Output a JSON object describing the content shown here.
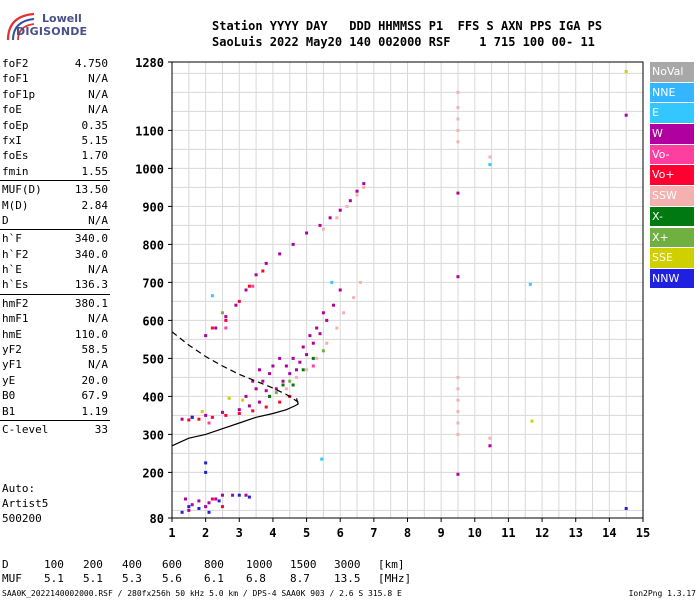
{
  "logo": {
    "line1": "Lowell",
    "line2": "DIGISONDE"
  },
  "header": {
    "line1": "Station YYYY DAY   DDD HHMMSS P1  FFS S AXN PPS IGA PS",
    "line2": "SaoLuis 2022 May20 140 002000 RSF    1 715 100 00- 11"
  },
  "params": [
    [
      [
        "foF2",
        "4.750"
      ],
      [
        "foF1",
        "N/A"
      ],
      [
        "foF1p",
        "N/A"
      ],
      [
        "foE",
        "N/A"
      ],
      [
        "foEp",
        "0.35"
      ],
      [
        "fxI",
        "5.15"
      ],
      [
        "foEs",
        "1.70"
      ],
      [
        "fmin",
        "1.55"
      ]
    ],
    [
      [
        "MUF(D)",
        "13.50"
      ],
      [
        "M(D)",
        "2.84"
      ],
      [
        "D",
        "N/A"
      ]
    ],
    [
      [
        "h`F",
        "340.0"
      ],
      [
        "h`F2",
        "340.0"
      ],
      [
        "h`E",
        "N/A"
      ],
      [
        "h`Es",
        "136.3"
      ]
    ],
    [
      [
        "hmF2",
        "380.1"
      ],
      [
        "hmF1",
        "N/A"
      ],
      [
        "hmE",
        "110.0"
      ],
      [
        "yF2",
        "58.5"
      ],
      [
        "yF1",
        "N/A"
      ],
      [
        "yE",
        "20.0"
      ],
      [
        "B0",
        "67.9"
      ],
      [
        "B1",
        "1.19"
      ]
    ],
    [
      [
        "C-level",
        "33"
      ]
    ]
  ],
  "auto": {
    "line1": "Auto:",
    "line2": "Artist5",
    "line3": "500200"
  },
  "legend": [
    {
      "label": "NoVal",
      "color": "#a8a8a8"
    },
    {
      "label": "NNE",
      "color": "#33b5ff"
    },
    {
      "label": "E",
      "color": "#33c6ff"
    },
    {
      "label": "W",
      "color": "#b000a0"
    },
    {
      "label": "Vo-",
      "color": "#ff3fa0"
    },
    {
      "label": "Vo+",
      "color": "#ff0030"
    },
    {
      "label": "SSW",
      "color": "#f5b0b0"
    },
    {
      "label": "X-",
      "color": "#007a10"
    },
    {
      "label": "X+",
      "color": "#70b040"
    },
    {
      "label": "SSE",
      "color": "#d0d000"
    },
    {
      "label": "NNW",
      "color": "#2020e0"
    }
  ],
  "footer": {
    "d_label": "D",
    "d_values": [
      "100",
      "200",
      "400",
      "600",
      "800",
      "1000",
      "1500",
      "3000"
    ],
    "d_unit": "[km]",
    "muf_label": "MUF",
    "muf_values": [
      "5.1",
      "5.1",
      "5.3",
      "5.6",
      "6.1",
      "6.8",
      "8.7",
      "13.5"
    ],
    "muf_unit": "[MHz]"
  },
  "bottomline": "SAA0K_2022140002000.RSF / 280fx256h 50 kHz 5.0 km / DPS-4 SAA0K 903 / 2.6 S 315.8 E",
  "version": "Ion2Png 1.3.17",
  "chart_data": {
    "type": "scatter",
    "xlim": [
      1,
      15
    ],
    "ylim": [
      80,
      1280
    ],
    "xticks": [
      1,
      2,
      3,
      4,
      5,
      6,
      7,
      8,
      9,
      10,
      11,
      12,
      13,
      14,
      15
    ],
    "yticks": [
      80,
      200,
      300,
      400,
      500,
      600,
      700,
      800,
      900,
      1000,
      1100,
      1280
    ],
    "grid": true,
    "series": [
      {
        "name": "W",
        "color": "#b000a0",
        "points": [
          [
            1.3,
            340
          ],
          [
            1.6,
            345
          ],
          [
            2.0,
            350
          ],
          [
            2.5,
            358
          ],
          [
            3.0,
            365
          ],
          [
            3.3,
            375
          ],
          [
            3.6,
            385
          ],
          [
            3.9,
            400
          ],
          [
            4.1,
            420
          ],
          [
            4.3,
            440
          ],
          [
            4.5,
            460
          ],
          [
            4.8,
            490
          ],
          [
            5.0,
            510
          ],
          [
            5.2,
            540
          ],
          [
            5.4,
            565
          ],
          [
            5.6,
            600
          ],
          [
            5.8,
            640
          ],
          [
            6.0,
            680
          ],
          [
            3.5,
            420
          ],
          [
            3.7,
            440
          ],
          [
            3.9,
            460
          ],
          [
            4.0,
            480
          ],
          [
            4.2,
            500
          ],
          [
            3.4,
            440
          ],
          [
            3.6,
            470
          ],
          [
            4.4,
            480
          ],
          [
            4.6,
            500
          ],
          [
            4.9,
            530
          ],
          [
            5.1,
            560
          ],
          [
            5.3,
            580
          ],
          [
            5.5,
            620
          ],
          [
            3.2,
            400
          ],
          [
            3.8,
            415
          ],
          [
            4.7,
            470
          ],
          [
            2.0,
            560
          ],
          [
            2.3,
            580
          ],
          [
            2.6,
            610
          ],
          [
            2.9,
            640
          ],
          [
            3.2,
            680
          ],
          [
            3.5,
            720
          ],
          [
            3.8,
            750
          ],
          [
            4.2,
            775
          ],
          [
            4.6,
            800
          ],
          [
            5.0,
            830
          ],
          [
            5.4,
            850
          ],
          [
            5.7,
            870
          ],
          [
            6.0,
            890
          ],
          [
            6.3,
            915
          ],
          [
            6.5,
            940
          ],
          [
            6.7,
            960
          ],
          [
            1.4,
            130
          ],
          [
            1.6,
            115
          ],
          [
            1.8,
            125
          ],
          [
            2.1,
            120
          ],
          [
            2.3,
            130
          ],
          [
            2.5,
            140
          ],
          [
            2.8,
            140
          ],
          [
            3.2,
            140
          ],
          [
            1.5,
            100
          ],
          [
            2.0,
            110
          ],
          [
            9.5,
            935
          ],
          [
            9.5,
            715
          ],
          [
            9.5,
            195
          ],
          [
            14.5,
            1140
          ],
          [
            10.45,
            270
          ]
        ]
      },
      {
        "name": "Vo+",
        "color": "#ff0030",
        "points": [
          [
            1.5,
            338
          ],
          [
            1.8,
            340
          ],
          [
            2.2,
            345
          ],
          [
            2.6,
            350
          ],
          [
            3.0,
            355
          ],
          [
            3.4,
            362
          ],
          [
            3.8,
            372
          ],
          [
            4.2,
            385
          ],
          [
            4.5,
            400
          ],
          [
            2.2,
            580
          ],
          [
            2.6,
            600
          ],
          [
            3.0,
            650
          ],
          [
            3.3,
            690
          ],
          [
            3.7,
            730
          ],
          [
            2.5,
            110
          ],
          [
            2.2,
            130
          ]
        ]
      },
      {
        "name": "SSW",
        "color": "#f5b0b0",
        "points": [
          [
            4.4,
            420
          ],
          [
            4.7,
            450
          ],
          [
            5.0,
            470
          ],
          [
            5.3,
            500
          ],
          [
            5.6,
            540
          ],
          [
            5.9,
            580
          ],
          [
            6.1,
            620
          ],
          [
            6.4,
            660
          ],
          [
            6.6,
            700
          ],
          [
            5.5,
            840
          ],
          [
            5.9,
            870
          ],
          [
            6.2,
            900
          ],
          [
            6.5,
            930
          ],
          [
            6.7,
            950
          ],
          [
            9.5,
            1200
          ],
          [
            9.5,
            1160
          ],
          [
            9.5,
            1130
          ],
          [
            9.5,
            1100
          ],
          [
            9.5,
            1070
          ],
          [
            9.5,
            450
          ],
          [
            9.5,
            420
          ],
          [
            9.5,
            390
          ],
          [
            9.5,
            360
          ],
          [
            9.5,
            330
          ],
          [
            9.5,
            300
          ],
          [
            10.45,
            1030
          ],
          [
            10.45,
            290
          ]
        ]
      },
      {
        "name": "X-",
        "color": "#007a10",
        "points": [
          [
            4.6,
            430
          ],
          [
            4.9,
            470
          ],
          [
            5.2,
            500
          ],
          [
            3.9,
            400
          ],
          [
            4.3,
            430
          ]
        ]
      },
      {
        "name": "X+",
        "color": "#70b040",
        "points": [
          [
            4.5,
            440
          ],
          [
            4.1,
            410
          ],
          [
            5.5,
            520
          ],
          [
            2.5,
            620
          ]
        ]
      },
      {
        "name": "SSE",
        "color": "#d0d000",
        "points": [
          [
            2.7,
            395
          ],
          [
            1.9,
            360
          ],
          [
            3.1,
            390
          ],
          [
            14.5,
            1255
          ],
          [
            11.7,
            335
          ]
        ]
      },
      {
        "name": "NNW",
        "color": "#2020e0",
        "points": [
          [
            1.3,
            95
          ],
          [
            1.5,
            110
          ],
          [
            1.8,
            105
          ],
          [
            2.1,
            95
          ],
          [
            2.4,
            125
          ],
          [
            3.0,
            140
          ],
          [
            3.3,
            135
          ],
          [
            1.6,
            345
          ],
          [
            2.0,
            200
          ],
          [
            2.0,
            225
          ],
          [
            14.5,
            105
          ]
        ]
      },
      {
        "name": "E",
        "color": "#33c6ff",
        "points": [
          [
            10.45,
            1010
          ],
          [
            11.65,
            695
          ],
          [
            5.45,
            235
          ],
          [
            5.75,
            700
          ],
          [
            2.2,
            665
          ]
        ]
      },
      {
        "name": "Vo-",
        "color": "#ff3fa0",
        "points": [
          [
            2.1,
            330
          ],
          [
            2.6,
            580
          ],
          [
            5.2,
            480
          ],
          [
            3.4,
            690
          ]
        ]
      }
    ],
    "profile_solid": [
      [
        1,
        270
      ],
      [
        1.5,
        290
      ],
      [
        2,
        300
      ],
      [
        2.5,
        315
      ],
      [
        3,
        330
      ],
      [
        3.5,
        345
      ],
      [
        4,
        355
      ],
      [
        4.4,
        365
      ],
      [
        4.65,
        375
      ],
      [
        4.75,
        380
      ],
      [
        4.7,
        395
      ]
    ],
    "profile_dashed": [
      [
        1,
        570
      ],
      [
        1.5,
        535
      ],
      [
        2,
        505
      ],
      [
        2.5,
        480
      ],
      [
        3,
        458
      ],
      [
        3.5,
        440
      ],
      [
        4,
        422
      ],
      [
        4.4,
        405
      ],
      [
        4.75,
        385
      ]
    ]
  }
}
